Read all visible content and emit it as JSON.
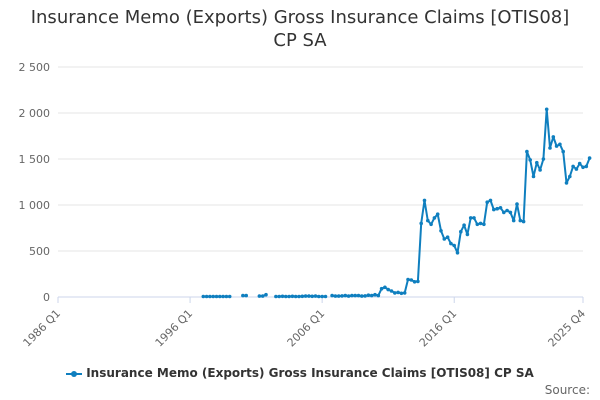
{
  "chart_data": {
    "type": "line",
    "title_lines": [
      "Insurance Memo (Exports) Gross Insurance Claims [OTIS08]",
      "CP SA"
    ],
    "xlabel": "",
    "ylabel": "",
    "ylim": [
      0,
      2500
    ],
    "y_ticks": [
      0,
      500,
      1000,
      1500,
      2000,
      2500
    ],
    "y_tick_labels": [
      "0",
      "500",
      "1 000",
      "1 500",
      "2 000",
      "2 500"
    ],
    "x_range": [
      "1986 Q1",
      "2025 Q4"
    ],
    "x_ticks": [
      "1986 Q1",
      "1996 Q1",
      "2006 Q1",
      "2016 Q1",
      "2025 Q4"
    ],
    "grid": true,
    "legend_position": "bottom",
    "color": "#0f7fbf",
    "series": [
      {
        "name": "Insurance Memo (Exports) Gross Insurance Claims [OTIS08] CP SA",
        "segments": [
          [
            [
              "1997 Q1",
              5
            ],
            [
              "1997 Q2",
              5
            ],
            [
              "1997 Q3",
              5
            ],
            [
              "1997 Q4",
              5
            ],
            [
              "1998 Q1",
              5
            ],
            [
              "1998 Q2",
              5
            ],
            [
              "1998 Q3",
              5
            ],
            [
              "1998 Q4",
              5
            ],
            [
              "1999 Q1",
              5
            ]
          ],
          [
            [
              "2000 Q1",
              15
            ],
            [
              "2000 Q2",
              15
            ]
          ],
          [
            [
              "2001 Q2",
              10
            ],
            [
              "2001 Q3",
              10
            ],
            [
              "2001 Q4",
              25
            ]
          ],
          [
            [
              "2002 Q3",
              5
            ],
            [
              "2002 Q4",
              5
            ],
            [
              "2003 Q1",
              8
            ],
            [
              "2003 Q2",
              5
            ],
            [
              "2003 Q3",
              5
            ],
            [
              "2003 Q4",
              8
            ],
            [
              "2004 Q1",
              5
            ],
            [
              "2004 Q2",
              5
            ],
            [
              "2004 Q3",
              8
            ],
            [
              "2004 Q4",
              10
            ],
            [
              "2005 Q1",
              10
            ],
            [
              "2005 Q2",
              8
            ],
            [
              "2005 Q3",
              10
            ],
            [
              "2005 Q4",
              5
            ],
            [
              "2006 Q1",
              5
            ],
            [
              "2006 Q2",
              5
            ]
          ],
          [
            [
              "2006 Q4",
              15
            ],
            [
              "2007 Q1",
              10
            ],
            [
              "2007 Q2",
              10
            ],
            [
              "2007 Q3",
              12
            ],
            [
              "2007 Q4",
              15
            ],
            [
              "2008 Q1",
              10
            ],
            [
              "2008 Q2",
              15
            ],
            [
              "2008 Q3",
              15
            ],
            [
              "2008 Q4",
              15
            ],
            [
              "2009 Q1",
              10
            ],
            [
              "2009 Q2",
              12
            ],
            [
              "2009 Q3",
              20
            ],
            [
              "2009 Q4",
              15
            ],
            [
              "2010 Q1",
              25
            ],
            [
              "2010 Q2",
              15
            ],
            [
              "2010 Q3",
              90
            ],
            [
              "2010 Q4",
              105
            ],
            [
              "2011 Q1",
              80
            ],
            [
              "2011 Q2",
              65
            ],
            [
              "2011 Q3",
              45
            ],
            [
              "2011 Q4",
              50
            ],
            [
              "2012 Q1",
              40
            ],
            [
              "2012 Q2",
              45
            ],
            [
              "2012 Q3",
              190
            ],
            [
              "2012 Q4",
              185
            ],
            [
              "2013 Q1",
              165
            ],
            [
              "2013 Q2",
              170
            ],
            [
              "2013 Q3",
              800
            ],
            [
              "2013 Q4",
              1050
            ],
            [
              "2014 Q1",
              830
            ],
            [
              "2014 Q2",
              790
            ],
            [
              "2014 Q3",
              860
            ],
            [
              "2014 Q4",
              900
            ],
            [
              "2015 Q1",
              720
            ],
            [
              "2015 Q2",
              630
            ],
            [
              "2015 Q3",
              650
            ],
            [
              "2015 Q4",
              580
            ],
            [
              "2016 Q1",
              560
            ],
            [
              "2016 Q2",
              480
            ],
            [
              "2016 Q3",
              710
            ],
            [
              "2016 Q4",
              780
            ],
            [
              "2017 Q1",
              680
            ],
            [
              "2017 Q2",
              860
            ],
            [
              "2017 Q3",
              860
            ],
            [
              "2017 Q4",
              790
            ],
            [
              "2018 Q1",
              800
            ],
            [
              "2018 Q2",
              790
            ],
            [
              "2018 Q3",
              1030
            ],
            [
              "2018 Q4",
              1050
            ],
            [
              "2019 Q1",
              950
            ],
            [
              "2019 Q2",
              960
            ],
            [
              "2019 Q3",
              970
            ],
            [
              "2019 Q4",
              920
            ],
            [
              "2020 Q1",
              940
            ],
            [
              "2020 Q2",
              920
            ],
            [
              "2020 Q3",
              830
            ],
            [
              "2020 Q4",
              1010
            ],
            [
              "2021 Q1",
              830
            ],
            [
              "2021 Q2",
              820
            ],
            [
              "2021 Q3",
              1580
            ],
            [
              "2021 Q4",
              1490
            ],
            [
              "2022 Q1",
              1310
            ],
            [
              "2022 Q2",
              1460
            ],
            [
              "2022 Q3",
              1380
            ],
            [
              "2022 Q4",
              1500
            ],
            [
              "2023 Q1",
              2040
            ],
            [
              "2023 Q2",
              1620
            ],
            [
              "2023 Q3",
              1740
            ],
            [
              "2023 Q4",
              1640
            ],
            [
              "2024 Q1",
              1660
            ],
            [
              "2024 Q2",
              1580
            ],
            [
              "2024 Q3",
              1240
            ],
            [
              "2024 Q4",
              1310
            ],
            [
              "2025 Q1",
              1420
            ],
            [
              "2025 Q2",
              1390
            ],
            [
              "2025 Q3",
              1450
            ],
            [
              "2025 Q4",
              1410
            ],
            [
              "2026 Q1",
              1420
            ],
            [
              "2026 Q2",
              1510
            ]
          ]
        ]
      }
    ]
  },
  "footer": {
    "source_label": "Source:"
  }
}
